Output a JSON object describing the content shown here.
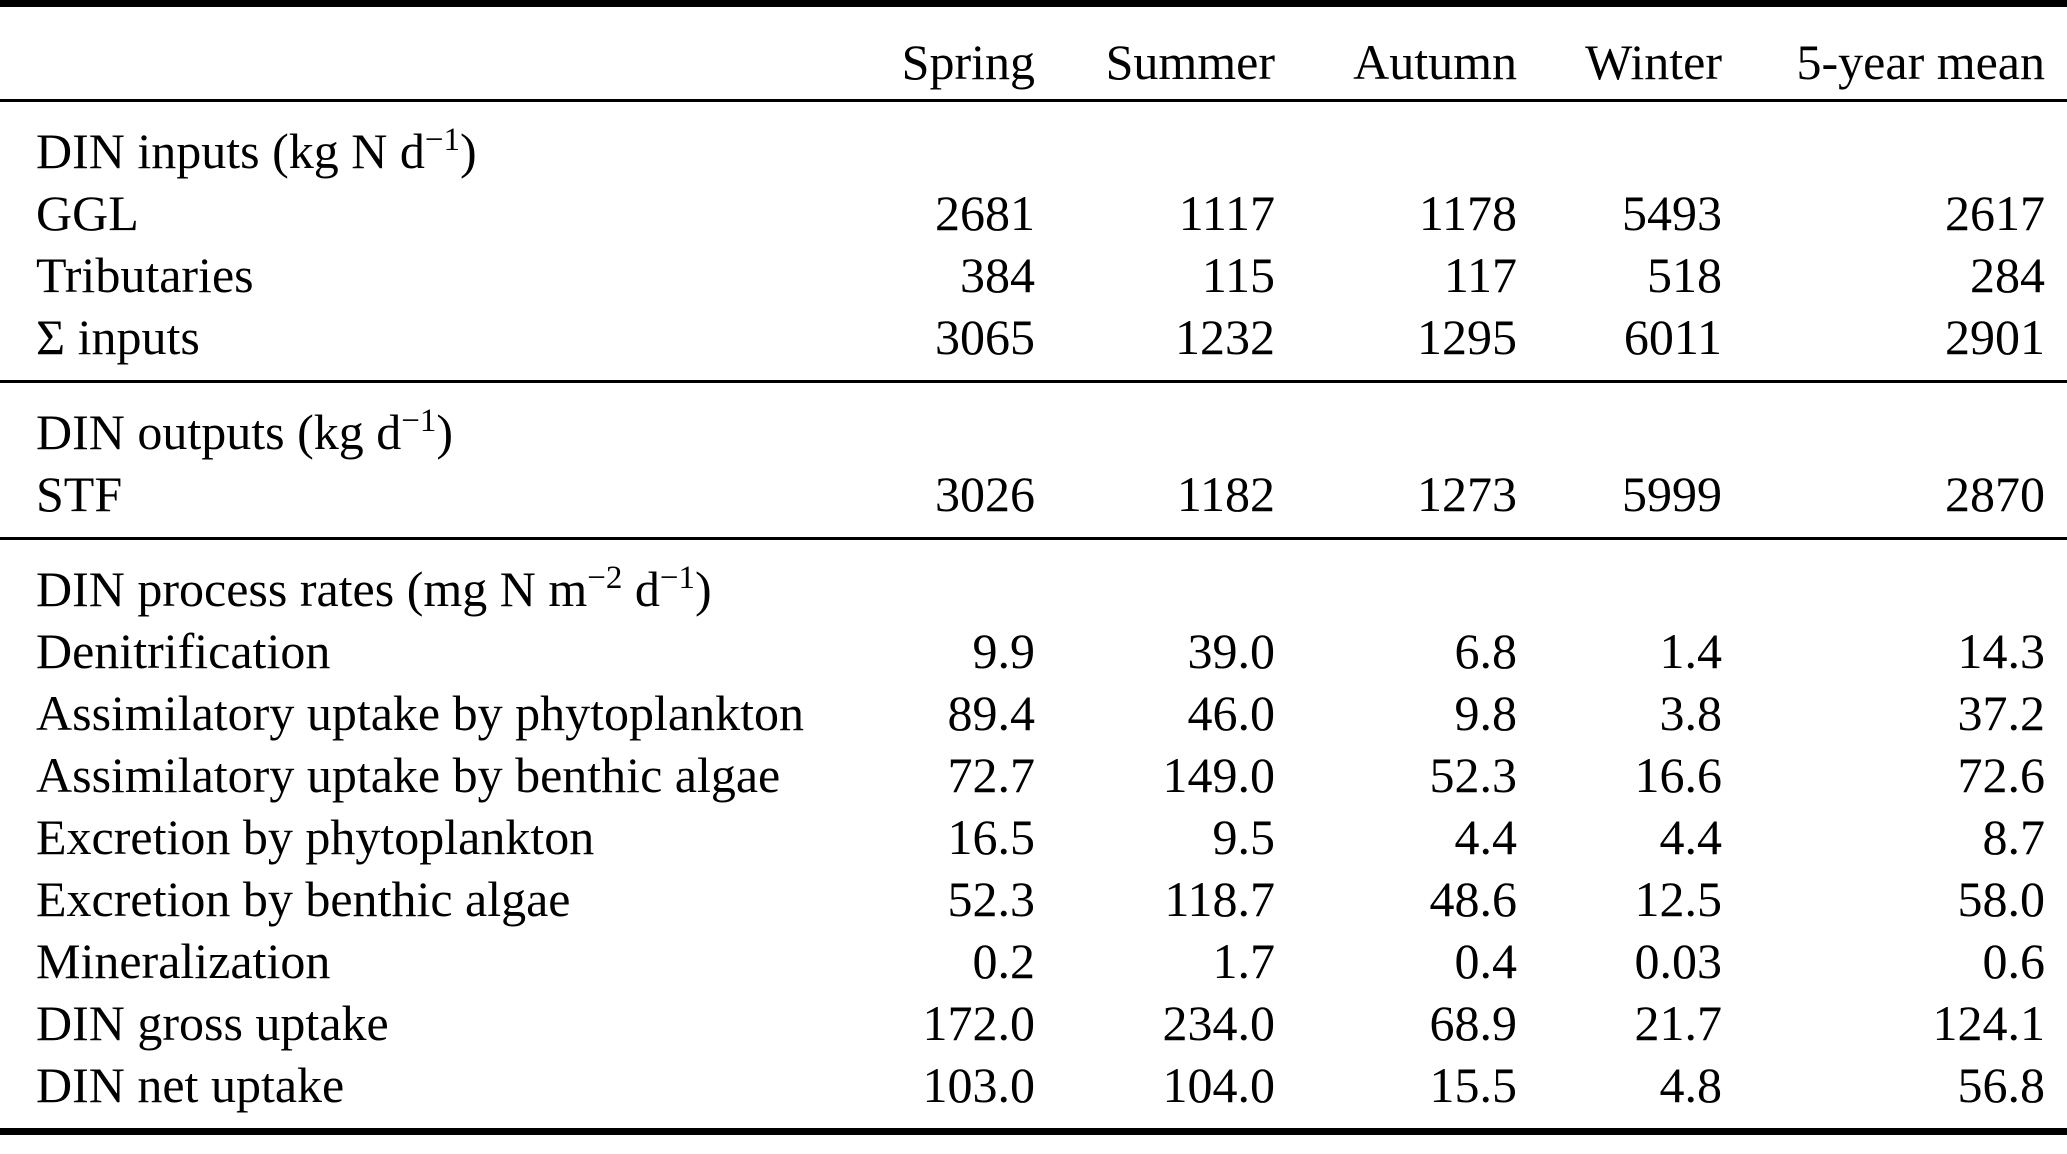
{
  "table": {
    "columns": [
      "",
      "Spring",
      "Summer",
      "Autumn",
      "Winter",
      "5-year mean"
    ],
    "sections": [
      {
        "header_parts": [
          "DIN inputs (kg N d",
          "−1",
          ")"
        ],
        "rows": [
          {
            "label": "GGL",
            "values": [
              "2681",
              "1117",
              "1178",
              "5493",
              "2617"
            ]
          },
          {
            "label": "Tributaries",
            "values": [
              "384",
              "115",
              "117",
              "518",
              "284"
            ]
          },
          {
            "label": "Σ inputs",
            "values": [
              "3065",
              "1232",
              "1295",
              "6011",
              "2901"
            ]
          }
        ]
      },
      {
        "header_parts": [
          "DIN outputs (kg d",
          "−1",
          ")"
        ],
        "rows": [
          {
            "label": "STF",
            "values": [
              "3026",
              "1182",
              "1273",
              "5999",
              "2870"
            ]
          }
        ]
      },
      {
        "header_parts": [
          "DIN process rates (mg N m",
          "−2",
          " d",
          "−1",
          ")"
        ],
        "rows": [
          {
            "label": "Denitrification",
            "values": [
              "9.9",
              "39.0",
              "6.8",
              "1.4",
              "14.3"
            ]
          },
          {
            "label": "Assimilatory uptake by phytoplankton",
            "values": [
              "89.4",
              "46.0",
              "9.8",
              "3.8",
              "37.2"
            ]
          },
          {
            "label": "Assimilatory uptake by benthic algae",
            "values": [
              "72.7",
              "149.0",
              "52.3",
              "16.6",
              "72.6"
            ]
          },
          {
            "label": "Excretion by phytoplankton",
            "values": [
              "16.5",
              "9.5",
              "4.4",
              "4.4",
              "8.7"
            ]
          },
          {
            "label": "Excretion by benthic algae",
            "values": [
              "52.3",
              "118.7",
              "48.6",
              "12.5",
              "58.0"
            ]
          },
          {
            "label": "Mineralization",
            "values": [
              "0.2",
              "1.7",
              "0.4",
              "0.03",
              "0.6"
            ]
          },
          {
            "label": "DIN gross uptake",
            "values": [
              "172.0",
              "234.0",
              "68.9",
              "21.7",
              "124.1"
            ]
          },
          {
            "label": "DIN net uptake",
            "values": [
              "103.0",
              "104.0",
              "15.5",
              "4.8",
              "56.8"
            ]
          }
        ]
      }
    ]
  }
}
